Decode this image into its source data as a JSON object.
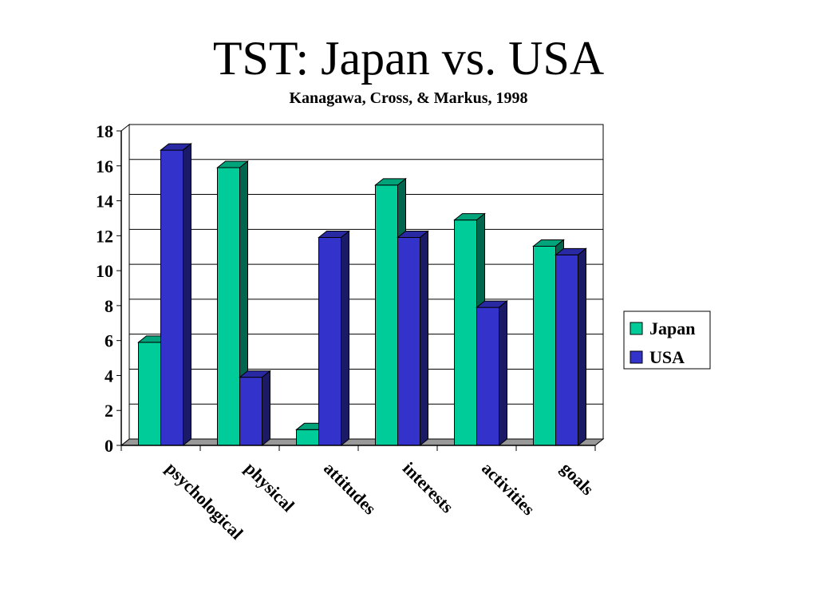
{
  "slide": {
    "title": "TST: Japan vs. USA",
    "subtitle": "Kanagawa, Cross, & Markus, 1998"
  },
  "chart_data": {
    "type": "bar",
    "categories": [
      "psychological",
      "physical",
      "attitudes",
      "interests",
      "activities",
      "goals"
    ],
    "series": [
      {
        "name": "Japan",
        "values": [
          5.9,
          15.9,
          0.9,
          14.9,
          12.9,
          11.4
        ],
        "color": "#00CC99"
      },
      {
        "name": "USA",
        "values": [
          16.9,
          3.9,
          11.9,
          11.9,
          7.9,
          10.9
        ],
        "color": "#3333CC"
      }
    ],
    "ylim": [
      0,
      18
    ],
    "yticks": [
      "0",
      "2",
      "4",
      "6",
      "8",
      "10",
      "12",
      "14",
      "16",
      "18"
    ],
    "grid": true,
    "legend": "right",
    "style": "3d-clustered"
  }
}
